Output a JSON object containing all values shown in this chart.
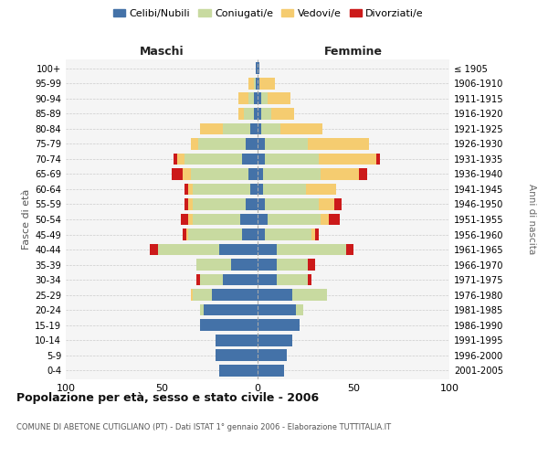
{
  "age_groups": [
    "0-4",
    "5-9",
    "10-14",
    "15-19",
    "20-24",
    "25-29",
    "30-34",
    "35-39",
    "40-44",
    "45-49",
    "50-54",
    "55-59",
    "60-64",
    "65-69",
    "70-74",
    "75-79",
    "80-84",
    "85-89",
    "90-94",
    "95-99",
    "100+"
  ],
  "birth_years": [
    "2001-2005",
    "1996-2000",
    "1991-1995",
    "1986-1990",
    "1981-1985",
    "1976-1980",
    "1971-1975",
    "1966-1970",
    "1961-1965",
    "1956-1960",
    "1951-1955",
    "1946-1950",
    "1941-1945",
    "1936-1940",
    "1931-1935",
    "1926-1930",
    "1921-1925",
    "1916-1920",
    "1911-1915",
    "1906-1910",
    "≤ 1905"
  ],
  "maschi": {
    "celibi": [
      20,
      22,
      22,
      30,
      28,
      24,
      18,
      14,
      20,
      8,
      9,
      6,
      4,
      5,
      8,
      6,
      4,
      2,
      2,
      1,
      1
    ],
    "coniugati": [
      0,
      0,
      0,
      0,
      2,
      10,
      12,
      18,
      32,
      28,
      25,
      28,
      30,
      30,
      30,
      25,
      14,
      5,
      3,
      1,
      0
    ],
    "vedovi": [
      0,
      0,
      0,
      0,
      0,
      1,
      0,
      0,
      0,
      1,
      2,
      2,
      2,
      4,
      4,
      4,
      12,
      3,
      5,
      3,
      0
    ],
    "divorziati": [
      0,
      0,
      0,
      0,
      0,
      0,
      2,
      0,
      4,
      2,
      4,
      2,
      2,
      6,
      2,
      0,
      0,
      0,
      0,
      0,
      0
    ]
  },
  "femmine": {
    "nubili": [
      14,
      15,
      18,
      22,
      20,
      18,
      10,
      10,
      10,
      4,
      5,
      4,
      3,
      3,
      4,
      4,
      2,
      2,
      2,
      1,
      1
    ],
    "coniugate": [
      0,
      0,
      0,
      0,
      4,
      18,
      16,
      16,
      36,
      24,
      28,
      28,
      22,
      30,
      28,
      22,
      10,
      5,
      3,
      0,
      0
    ],
    "vedove": [
      0,
      0,
      0,
      0,
      0,
      0,
      0,
      0,
      0,
      2,
      4,
      8,
      16,
      20,
      30,
      32,
      22,
      12,
      12,
      8,
      0
    ],
    "divorziate": [
      0,
      0,
      0,
      0,
      0,
      0,
      2,
      4,
      4,
      2,
      6,
      4,
      0,
      4,
      2,
      0,
      0,
      0,
      0,
      0,
      0
    ]
  },
  "colors": {
    "celibi": "#4472a8",
    "coniugati": "#c8daa0",
    "vedovi": "#f5cc70",
    "divorziati": "#cc1a1a"
  },
  "xlim": 100,
  "title": "Popolazione per età, sesso e stato civile - 2006",
  "subtitle": "COMUNE DI ABETONE CUTIGLIANO (PT) - Dati ISTAT 1° gennaio 2006 - Elaborazione TUTTITALIA.IT",
  "ylabel_left": "Fasce di età",
  "ylabel_right": "Anni di nascita",
  "legend_labels": [
    "Celibi/Nubili",
    "Coniugati/e",
    "Vedovi/e",
    "Divorziati/e"
  ]
}
